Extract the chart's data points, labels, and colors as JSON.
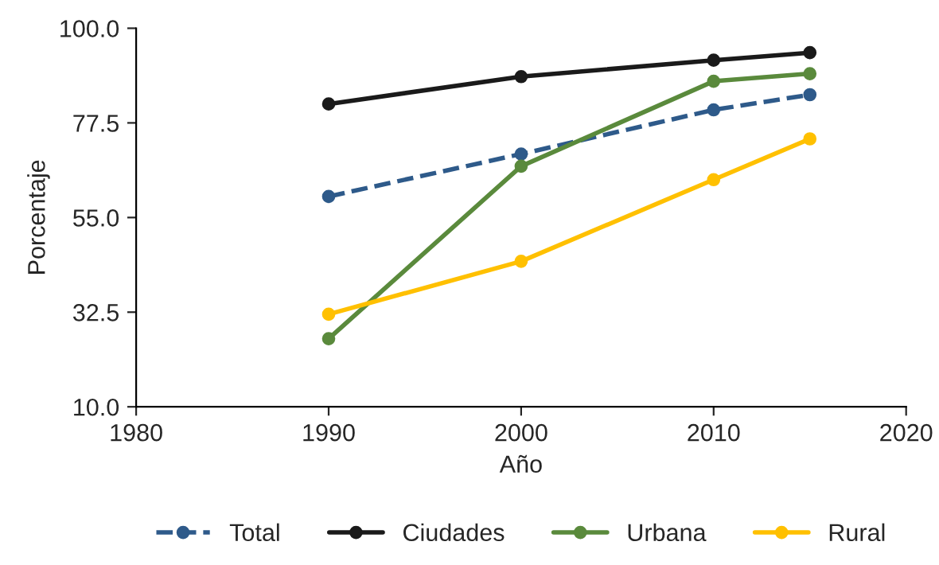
{
  "chart_data": {
    "type": "line",
    "xlabel": "Año",
    "ylabel": "Porcentaje",
    "xlim": [
      1980,
      2020
    ],
    "xticks": [
      1980,
      1990,
      2000,
      2010,
      2020
    ],
    "ylim": [
      10,
      100
    ],
    "yticks": [
      {
        "value": 10,
        "label": "10.0"
      },
      {
        "value": 32.5,
        "label": "32.5"
      },
      {
        "value": 55,
        "label": "55.0"
      },
      {
        "value": 77.5,
        "label": "77.5"
      },
      {
        "value": 100,
        "label": "100.0"
      }
    ],
    "grid": false,
    "legend": "bottom",
    "marker": "circle",
    "series": [
      {
        "name": "Total",
        "color": "#2e5a8a",
        "line_style": "dashed",
        "x": [
          1990,
          2000,
          2010,
          2015
        ],
        "values": [
          60.0,
          70.1,
          80.6,
          84.2
        ]
      },
      {
        "name": "Ciudades",
        "color": "#1a1a1a",
        "line_style": "solid",
        "x": [
          1990,
          2000,
          2010,
          2015
        ],
        "values": [
          82.0,
          88.5,
          92.4,
          94.2
        ]
      },
      {
        "name": "Urbana",
        "color": "#5a8a3c",
        "line_style": "solid",
        "x": [
          1990,
          2000,
          2010,
          2015
        ],
        "values": [
          26.2,
          67.2,
          87.4,
          89.2
        ]
      },
      {
        "name": "Rural",
        "color": "#ffc000",
        "line_style": "solid",
        "x": [
          1990,
          2000,
          2010,
          2015
        ],
        "values": [
          32.0,
          44.6,
          64.0,
          73.7
        ]
      }
    ]
  }
}
